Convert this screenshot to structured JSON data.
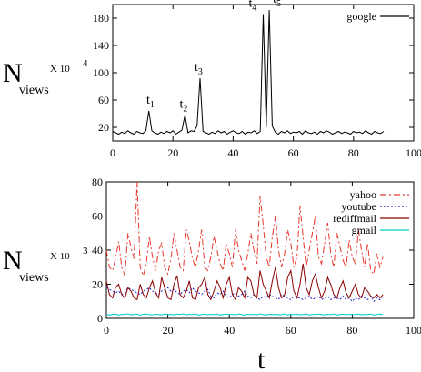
{
  "chart_data": [
    {
      "type": "line",
      "ylabel": {
        "main": "N",
        "sub": "views",
        "multiplier": "X 10",
        "exponent": "4"
      },
      "xlim": [
        0,
        100
      ],
      "ylim": [
        0,
        200
      ],
      "xticks": [
        "0",
        "20",
        "40",
        "60",
        "80",
        "100"
      ],
      "yticks": [
        "20",
        "60",
        "100",
        "140",
        "180"
      ],
      "legend": "top-right",
      "series": [
        {
          "name": "google",
          "color": "#000000",
          "x": [
            0,
            1,
            2,
            3,
            4,
            5,
            6,
            7,
            8,
            9,
            10,
            11,
            12,
            13,
            14,
            15,
            16,
            17,
            18,
            19,
            20,
            21,
            22,
            23,
            24,
            25,
            26,
            27,
            28,
            29,
            30,
            31,
            32,
            33,
            34,
            35,
            36,
            37,
            38,
            39,
            40,
            41,
            42,
            43,
            44,
            45,
            46,
            47,
            48,
            49,
            50,
            51,
            52,
            53,
            54,
            55,
            56,
            57,
            58,
            59,
            60,
            61,
            62,
            63,
            64,
            65,
            66,
            67,
            68,
            69,
            70,
            71,
            72,
            73,
            74,
            75,
            76,
            77,
            78,
            79,
            80,
            81,
            82,
            83,
            84,
            85,
            86,
            87,
            88,
            89,
            90
          ],
          "values": [
            14,
            12,
            10,
            13,
            11,
            15,
            12,
            10,
            14,
            12,
            11,
            15,
            44,
            15,
            12,
            10,
            13,
            11,
            14,
            12,
            15,
            10,
            13,
            16,
            38,
            12,
            15,
            14,
            22,
            92,
            14,
            12,
            10,
            13,
            11,
            15,
            12,
            14,
            10,
            13,
            15,
            12,
            11,
            14,
            10,
            13,
            12,
            15,
            11,
            14,
            186,
            20,
            192,
            22,
            13,
            10,
            14,
            12,
            15,
            11,
            13,
            12,
            14,
            10,
            15,
            12,
            11,
            13,
            10,
            14,
            12,
            15,
            13,
            10,
            12,
            14,
            11,
            13,
            12,
            10,
            14,
            12,
            13,
            11,
            15,
            12,
            10,
            14,
            12,
            11,
            14
          ]
        }
      ],
      "annotations": [
        {
          "x": 13,
          "y": 44,
          "label": "t",
          "sub": "1"
        },
        {
          "x": 24,
          "y": 38,
          "label": "t",
          "sub": "2"
        },
        {
          "x": 29,
          "y": 92,
          "label": "t",
          "sub": "3"
        },
        {
          "x": 50,
          "y": 186,
          "label": "t",
          "sub": "4"
        },
        {
          "x": 52,
          "y": 192,
          "label": "t",
          "sub": "5"
        }
      ]
    },
    {
      "type": "line",
      "xlabel": "t",
      "ylabel": {
        "main": "N",
        "sub": "views",
        "multiplier": "X 10",
        "exponent": "3"
      },
      "xlim": [
        0,
        100
      ],
      "ylim": [
        0,
        80
      ],
      "xticks": [
        "0",
        "20",
        "40",
        "60",
        "80",
        "100"
      ],
      "yticks": [
        "0",
        "20",
        "40",
        "60",
        "80"
      ],
      "legend": "top-right",
      "series": [
        {
          "name": "yahoo",
          "color": "#e8352b",
          "dash": "7,3,2,3",
          "values": [
            40,
            30,
            28,
            35,
            45,
            30,
            25,
            50,
            42,
            35,
            80,
            30,
            25,
            32,
            48,
            36,
            28,
            40,
            44,
            30,
            26,
            35,
            50,
            40,
            30,
            28,
            52,
            45,
            35,
            30,
            40,
            52,
            30,
            28,
            36,
            48,
            40,
            32,
            28,
            44,
            38,
            30,
            52,
            40,
            34,
            28,
            38,
            50,
            40,
            32,
            72,
            55,
            36,
            30,
            48,
            60,
            40,
            30,
            38,
            52,
            44,
            30,
            36,
            66,
            48,
            30,
            40,
            50,
            60,
            36,
            32,
            44,
            56,
            38,
            30,
            50,
            42,
            34,
            30,
            46,
            36,
            32,
            52,
            40,
            30,
            44,
            28,
            26,
            38,
            30,
            36
          ]
        },
        {
          "name": "youtube",
          "color": "#2222cc",
          "dash": "2,2",
          "values": [
            18,
            17,
            16,
            15,
            16,
            14,
            15,
            18,
            17,
            16,
            15,
            14,
            16,
            17,
            18,
            16,
            15,
            14,
            16,
            17,
            18,
            16,
            17,
            15,
            14,
            16,
            17,
            15,
            18,
            16,
            15,
            14,
            16,
            17,
            13,
            12,
            15,
            14,
            16,
            13,
            12,
            14,
            15,
            13,
            14,
            16,
            13,
            12,
            14,
            12,
            11,
            13,
            12,
            14,
            13,
            12,
            11,
            14,
            13,
            12,
            11,
            13,
            12,
            12,
            11,
            12,
            13,
            11,
            12,
            13,
            11,
            12,
            13,
            11,
            12,
            12,
            11,
            13,
            11,
            12,
            10,
            12,
            11,
            13,
            12,
            11,
            13,
            10,
            12,
            11,
            13
          ]
        },
        {
          "name": "rediffmail",
          "color": "#8b0000",
          "dash": "",
          "values": [
            22,
            14,
            12,
            18,
            20,
            14,
            12,
            18,
            16,
            12,
            11,
            20,
            14,
            12,
            18,
            22,
            15,
            12,
            24,
            18,
            12,
            11,
            20,
            25,
            14,
            12,
            16,
            22,
            12,
            11,
            18,
            20,
            24,
            14,
            11,
            16,
            22,
            18,
            12,
            20,
            24,
            14,
            11,
            18,
            16,
            12,
            24,
            22,
            14,
            12,
            28,
            20,
            16,
            12,
            22,
            30,
            18,
            12,
            14,
            24,
            28,
            16,
            12,
            20,
            32,
            18,
            14,
            22,
            26,
            18,
            12,
            16,
            24,
            20,
            14,
            12,
            18,
            22,
            15,
            12,
            16,
            20,
            14,
            12,
            18,
            16,
            13,
            12,
            14,
            12,
            14
          ]
        },
        {
          "name": "gmail",
          "color": "#00cccc",
          "dash": "",
          "values": [
            2.5,
            2,
            2.3,
            2.6,
            2,
            2.4,
            2.2,
            2.7,
            2.1,
            2.3,
            2.5,
            2,
            2.4,
            2.6,
            2.2,
            2,
            2.5,
            2.3,
            2.1,
            2.6,
            2.2,
            2.4,
            2,
            2.5,
            2.3,
            2.7,
            2.1,
            2.4,
            2.2,
            2.6,
            2,
            2.3,
            2.5,
            2.1,
            2.4,
            2.2,
            2.6,
            2,
            2.3,
            2.5,
            2.2,
            2.4,
            2.1,
            2.6,
            2.3,
            2,
            2.5,
            2.2,
            2.4,
            2.1,
            2.6,
            2.3,
            2,
            2.5,
            2.2,
            2.4,
            2.1,
            2.3,
            2.6,
            2,
            2.4,
            2.2,
            2.5,
            2.1,
            2.3,
            2.6,
            2,
            2.4,
            2.2,
            2.5,
            2.3,
            2.1,
            2.4,
            2.2,
            2.6,
            2,
            2.3,
            2.5,
            2.1,
            2.4,
            2.2,
            2.3,
            2.5,
            2.1,
            2.4,
            2.2,
            2.6,
            2,
            2.3,
            2.5,
            2.2
          ]
        }
      ]
    }
  ]
}
